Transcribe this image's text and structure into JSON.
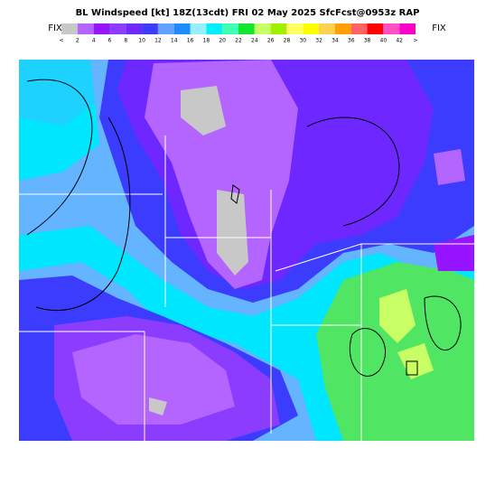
{
  "header": {
    "title": "BL Windspeed [kt] 18Z(13cdt) FRI 02 May 2025 SfcFcst@0953z RAP",
    "fix_left": "FIX",
    "fix_right": "FIX"
  },
  "legend": {
    "labels": [
      "<",
      2,
      4,
      6,
      8,
      10,
      12,
      14,
      16,
      18,
      20,
      22,
      24,
      26,
      28,
      30,
      32,
      34,
      36,
      38,
      40,
      42,
      ">"
    ],
    "colors": [
      "#c8c8c8",
      "#b464ff",
      "#9614ff",
      "#8c3cff",
      "#6e28ff",
      "#3c3cff",
      "#64a0ff",
      "#1e8cff",
      "#96f0ff",
      "#00f0ff",
      "#3cffb4",
      "#14e632",
      "#c8ff64",
      "#a0f000",
      "#ffff64",
      "#ffff00",
      "#ffd050",
      "#ffa000",
      "#ff6464",
      "#ff0000",
      "#ff50c8",
      "#ff00c8"
    ]
  }
}
